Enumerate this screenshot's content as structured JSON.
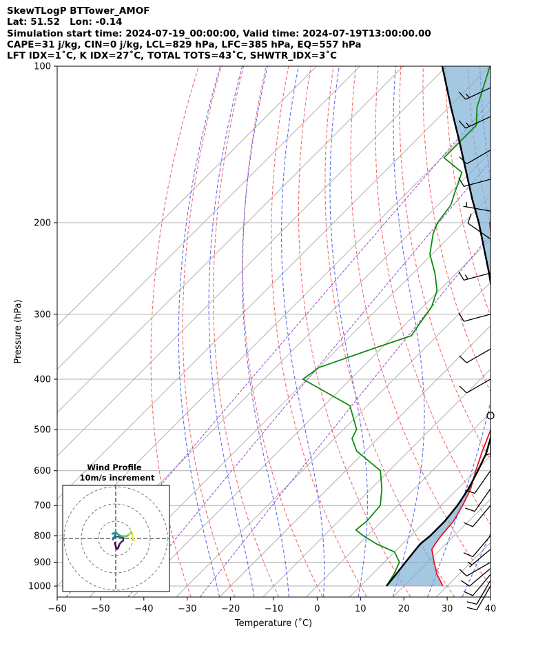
{
  "header": {
    "line1": "SkewTLogP BTTower_AMOF",
    "line2": "Lat: 51.52   Lon: -0.14",
    "line3": "Simulation start time: 2024-07-19_00:00:00, Valid time: 2024-07-19T13:00:00.00",
    "line4": "CAPE=31 j/kg, CIN=0 j/kg, LCL=829 hPa, LFC=385 hPa, EQ=557 hPa",
    "line5": "LFT IDX=1˚C, K IDX=27˚C, TOTAL TOTS=43˚C, SHWTR_IDX=3˚C"
  },
  "chart_data": [
    {
      "type": "line",
      "subtype": "skew-T log-P diagram",
      "xlabel": "Temperature (˚C)",
      "ylabel": "Pressure (hPa)",
      "xlim": [
        -60,
        40
      ],
      "ylim": [
        1050,
        100
      ],
      "y_scale": "log",
      "x_ticks": [
        "−60",
        "−50",
        "−40",
        "−30",
        "−20",
        "−10",
        "0",
        "10",
        "20",
        "30",
        "40"
      ],
      "y_ticks": [
        "100",
        "200",
        "300",
        "400",
        "500",
        "600",
        "700",
        "800",
        "900",
        "1000"
      ],
      "grid": true,
      "series": [
        {
          "role": "temperature",
          "color": "#e8141c",
          "pressure": [
            1000,
            950,
            900,
            850,
            830,
            800,
            750,
            700,
            650,
            600,
            550,
            500,
            450,
            400,
            350,
            300,
            270,
            250,
            220,
            200,
            190,
            180,
            170,
            160,
            150,
            140,
            130,
            120,
            110,
            100
          ],
          "temperature": [
            29.0,
            25.0,
            21.5,
            18.0,
            17.5,
            17.0,
            16.5,
            15.0,
            13.0,
            10.0,
            7.0,
            4.0,
            0.0,
            -6.0,
            -12.0,
            -20.5,
            -25.5,
            -29.5,
            -38.5,
            -44.0,
            -44.5,
            -44.0,
            -41.0,
            -38.0,
            -32.0,
            -29.5,
            -28.0,
            -27.0,
            -27.5,
            -30.0
          ]
        },
        {
          "role": "dewpoint",
          "color": "#0a8a0a",
          "pressure": [
            1000,
            950,
            900,
            860,
            830,
            800,
            780,
            750,
            700,
            650,
            600,
            550,
            520,
            500,
            450,
            400,
            380,
            350,
            330,
            310,
            290,
            270,
            250,
            230,
            210,
            200,
            185,
            175,
            160,
            150,
            130,
            120,
            100
          ],
          "temperature": [
            16.0,
            15.0,
            13.5,
            10.0,
            4.0,
            -1.0,
            -4.0,
            -3.5,
            -4.0,
            -7.5,
            -12.0,
            -22.0,
            -26.0,
            -27.0,
            -34.0,
            -51.0,
            -50.0,
            -42.0,
            -36.0,
            -37.0,
            -38.0,
            -40.5,
            -45.0,
            -50.5,
            -54.5,
            -56.0,
            -57.0,
            -59.0,
            -62.0,
            -69.5,
            -69.5,
            -73.5,
            -80.0
          ]
        },
        {
          "role": "parcel",
          "color": "#000000",
          "pressure": [
            1000,
            950,
            900,
            850,
            829,
            800,
            750,
            700,
            650,
            600,
            557,
            500,
            450,
            400,
            385,
            350,
            300,
            250,
            200,
            180,
            160,
            140,
            120,
            100
          ],
          "temperature": [
            16.0,
            15.5,
            14.9,
            14.3,
            14.1,
            14.5,
            14.5,
            13.8,
            12.5,
            10.5,
            8.5,
            4.5,
            0.0,
            -6.0,
            -8.0,
            -13.0,
            -21.5,
            -32.5,
            -46.5,
            -53.5,
            -61.0,
            -69.5,
            -79.5,
            -91.0
          ]
        }
      ],
      "wind_barbs": {
        "color": "#000000",
        "pressure": [
          1000,
          975,
          950,
          925,
          900,
          850,
          800,
          700,
          650,
          600,
          500,
          450,
          400,
          350,
          300,
          250,
          215,
          190,
          165,
          145,
          125,
          110
        ],
        "speed_kt": [
          10,
          10,
          10,
          10,
          10,
          5,
          10,
          10,
          10,
          10,
          5,
          0,
          10,
          10,
          10,
          15,
          10,
          5,
          10,
          10,
          15,
          15
        ],
        "direction_deg": [
          210,
          210,
          220,
          230,
          240,
          230,
          220,
          220,
          215,
          215,
          180,
          0,
          240,
          240,
          255,
          255,
          305,
          280,
          255,
          240,
          245,
          245
        ],
        "calm_marker_pressure": 470
      },
      "cape_shading_color": "#7eb0d5"
    },
    {
      "type": "line",
      "subtype": "hodograph",
      "title": "Wind Profile",
      "subtitle": "10m/s increment",
      "rings_ms": [
        10,
        20,
        30
      ],
      "series": [
        {
          "role": "hodograph-trace",
          "u_ms": [
            -0.5,
            0.1,
            0.7,
            1.3,
            2.2,
            3.5,
            4.3,
            4.5,
            3.0,
            1.2,
            -0.3,
            -1.4,
            -1.7,
            -1.3,
            -0.4,
            0.0,
            -0.8,
            -1.9,
            -1.9,
            -0.8,
            0.0,
            0.8,
            2.0,
            3.0,
            4.0,
            5.3,
            6.2,
            6.8,
            7.8,
            8.7,
            9.0,
            9.4,
            9.7,
            9.8,
            10.3,
            10.7
          ],
          "v_ms": [
            -2.6,
            -5.0,
            -6.1,
            -5.7,
            -3.3,
            -1.8,
            -1.3,
            0.2,
            0.9,
            1.1,
            1.0,
            0.3,
            -0.6,
            -0.1,
            1.6,
            2.5,
            2.9,
            2.8,
            2.7,
            3.1,
            3.8,
            2.9,
            1.9,
            1.4,
            1.2,
            1.4,
            1.2,
            1.6,
            2.3,
            3.5,
            3.9,
            3.0,
            1.6,
            0.7,
            -0.2,
            -1.1
          ],
          "colormap": "viridis"
        }
      ]
    }
  ]
}
